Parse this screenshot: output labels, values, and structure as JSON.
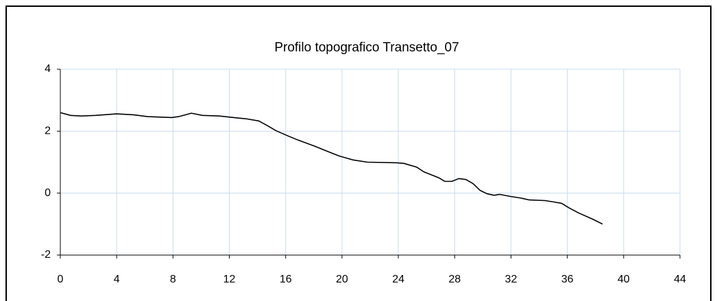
{
  "chart_data": {
    "type": "line",
    "title": "Profilo topografico Transetto_07",
    "series": [
      {
        "color": "#000000",
        "x": [
          0,
          0.73,
          1.46,
          2.5,
          4.0,
          5.2,
          6.2,
          7.9,
          8.4,
          8.9,
          9.3,
          10.1,
          11.3,
          12.3,
          13.2,
          14.1,
          14.7,
          15.3,
          16.2,
          16.9,
          18.1,
          18.8,
          19.8,
          20.8,
          21.8,
          23.9,
          24.4,
          25.3,
          25.8,
          26.9,
          27.3,
          27.8,
          28.3,
          28.8,
          29.3,
          29.8,
          30.3,
          30.8,
          31.2,
          32.0,
          32.7,
          33.3,
          34.4,
          35.1,
          35.6,
          36.1,
          36.8,
          37.8,
          38.5
        ],
        "values": [
          2.6,
          2.51,
          2.49,
          2.51,
          2.56,
          2.53,
          2.47,
          2.44,
          2.47,
          2.53,
          2.58,
          2.51,
          2.49,
          2.44,
          2.4,
          2.33,
          2.18,
          2.02,
          1.84,
          1.71,
          1.51,
          1.38,
          1.2,
          1.07,
          1.0,
          0.98,
          0.96,
          0.84,
          0.69,
          0.49,
          0.38,
          0.38,
          0.47,
          0.44,
          0.31,
          0.09,
          -0.02,
          -0.07,
          -0.04,
          -0.11,
          -0.16,
          -0.22,
          -0.24,
          -0.29,
          -0.33,
          -0.47,
          -0.64,
          -0.84,
          -1.0
        ]
      }
    ],
    "xlim": [
      0,
      44
    ],
    "xticks": [
      0,
      4,
      8,
      12,
      16,
      20,
      24,
      28,
      32,
      36,
      40,
      44
    ],
    "ylim": [
      -2,
      4
    ],
    "yticks": [
      -2,
      0,
      2,
      4
    ],
    "grid": true
  }
}
